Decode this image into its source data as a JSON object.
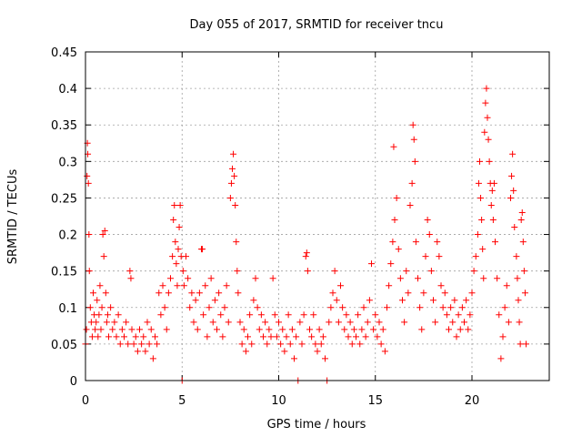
{
  "chart_data": {
    "type": "scatter",
    "title": "Day 055 of 2017, SRMTID for receiver tncu",
    "xlabel": "GPS time / hours",
    "ylabel": "SRMTID / TECUs",
    "xlim": [
      0,
      24
    ],
    "ylim": [
      0,
      0.45
    ],
    "xticks": [
      0,
      5,
      10,
      15,
      20
    ],
    "yticks": [
      0,
      0.05,
      0.1,
      0.15,
      0.2,
      0.25,
      0.3,
      0.35,
      0.4,
      0.45
    ],
    "xtick_labels": [
      "0",
      "5",
      "10",
      "15",
      "20"
    ],
    "ytick_labels": [
      "0",
      "0.05",
      "0.1",
      "0.15",
      "0.2",
      "0.25",
      "0.3",
      "0.35",
      "0.4",
      "0.45"
    ],
    "grid": true,
    "marker": "+",
    "color": "#ff0000",
    "series": [
      {
        "name": "SRMTID",
        "points": [
          [
            0.0,
            0.05
          ],
          [
            0.05,
            0.07
          ],
          [
            0.08,
            0.28
          ],
          [
            0.1,
            0.325
          ],
          [
            0.12,
            0.31
          ],
          [
            0.15,
            0.27
          ],
          [
            0.18,
            0.2
          ],
          [
            0.2,
            0.15
          ],
          [
            0.25,
            0.1
          ],
          [
            0.3,
            0.08
          ],
          [
            0.35,
            0.06
          ],
          [
            0.4,
            0.12
          ],
          [
            0.45,
            0.09
          ],
          [
            0.5,
            0.07
          ],
          [
            0.55,
            0.08
          ],
          [
            0.6,
            0.11
          ],
          [
            0.65,
            0.06
          ],
          [
            0.7,
            0.09
          ],
          [
            0.75,
            0.13
          ],
          [
            0.8,
            0.07
          ],
          [
            0.85,
            0.1
          ],
          [
            0.9,
            0.2
          ],
          [
            0.95,
            0.17
          ],
          [
            1.0,
            0.205
          ],
          [
            1.05,
            0.12
          ],
          [
            1.1,
            0.08
          ],
          [
            1.15,
            0.09
          ],
          [
            1.2,
            0.06
          ],
          [
            1.3,
            0.1
          ],
          [
            1.4,
            0.07
          ],
          [
            1.5,
            0.08
          ],
          [
            1.6,
            0.06
          ],
          [
            1.7,
            0.09
          ],
          [
            1.8,
            0.05
          ],
          [
            1.9,
            0.07
          ],
          [
            2.0,
            0.06
          ],
          [
            2.1,
            0.08
          ],
          [
            2.2,
            0.05
          ],
          [
            2.3,
            0.15
          ],
          [
            2.35,
            0.14
          ],
          [
            2.4,
            0.07
          ],
          [
            2.5,
            0.05
          ],
          [
            2.6,
            0.06
          ],
          [
            2.7,
            0.04
          ],
          [
            2.8,
            0.07
          ],
          [
            2.9,
            0.05
          ],
          [
            3.0,
            0.06
          ],
          [
            3.1,
            0.04
          ],
          [
            3.2,
            0.08
          ],
          [
            3.3,
            0.05
          ],
          [
            3.4,
            0.07
          ],
          [
            3.5,
            0.03
          ],
          [
            3.6,
            0.06
          ],
          [
            3.7,
            0.05
          ],
          [
            3.8,
            0.12
          ],
          [
            3.9,
            0.09
          ],
          [
            4.0,
            0.13
          ],
          [
            4.1,
            0.1
          ],
          [
            4.2,
            0.07
          ],
          [
            4.3,
            0.12
          ],
          [
            4.4,
            0.14
          ],
          [
            4.5,
            0.17
          ],
          [
            4.55,
            0.22
          ],
          [
            4.6,
            0.24
          ],
          [
            4.65,
            0.19
          ],
          [
            4.7,
            0.16
          ],
          [
            4.75,
            0.13
          ],
          [
            4.8,
            0.18
          ],
          [
            4.85,
            0.21
          ],
          [
            4.9,
            0.24
          ],
          [
            4.95,
            0.17
          ],
          [
            5.0,
            0.0
          ],
          [
            5.05,
            0.15
          ],
          [
            5.1,
            0.13
          ],
          [
            5.2,
            0.17
          ],
          [
            5.3,
            0.14
          ],
          [
            5.4,
            0.1
          ],
          [
            5.5,
            0.12
          ],
          [
            5.6,
            0.08
          ],
          [
            5.7,
            0.11
          ],
          [
            5.8,
            0.07
          ],
          [
            5.9,
            0.12
          ],
          [
            6.0,
            0.18
          ],
          [
            6.05,
            0.18
          ],
          [
            6.1,
            0.09
          ],
          [
            6.2,
            0.13
          ],
          [
            6.3,
            0.06
          ],
          [
            6.4,
            0.1
          ],
          [
            6.5,
            0.14
          ],
          [
            6.6,
            0.08
          ],
          [
            6.7,
            0.11
          ],
          [
            6.8,
            0.07
          ],
          [
            6.9,
            0.12
          ],
          [
            7.0,
            0.09
          ],
          [
            7.1,
            0.06
          ],
          [
            7.2,
            0.1
          ],
          [
            7.3,
            0.13
          ],
          [
            7.4,
            0.08
          ],
          [
            7.5,
            0.25
          ],
          [
            7.55,
            0.27
          ],
          [
            7.6,
            0.29
          ],
          [
            7.65,
            0.31
          ],
          [
            7.7,
            0.28
          ],
          [
            7.75,
            0.24
          ],
          [
            7.8,
            0.19
          ],
          [
            7.85,
            0.15
          ],
          [
            7.9,
            0.12
          ],
          [
            8.0,
            0.08
          ],
          [
            8.1,
            0.05
          ],
          [
            8.2,
            0.07
          ],
          [
            8.3,
            0.04
          ],
          [
            8.4,
            0.06
          ],
          [
            8.5,
            0.09
          ],
          [
            8.6,
            0.05
          ],
          [
            8.7,
            0.11
          ],
          [
            8.8,
            0.14
          ],
          [
            8.9,
            0.1
          ],
          [
            9.0,
            0.07
          ],
          [
            9.1,
            0.09
          ],
          [
            9.2,
            0.06
          ],
          [
            9.3,
            0.08
          ],
          [
            9.4,
            0.05
          ],
          [
            9.5,
            0.07
          ],
          [
            9.6,
            0.06
          ],
          [
            9.7,
            0.14
          ],
          [
            9.8,
            0.09
          ],
          [
            9.9,
            0.06
          ],
          [
            10.0,
            0.08
          ],
          [
            10.1,
            0.05
          ],
          [
            10.2,
            0.07
          ],
          [
            10.3,
            0.04
          ],
          [
            10.4,
            0.06
          ],
          [
            10.5,
            0.09
          ],
          [
            10.6,
            0.05
          ],
          [
            10.7,
            0.07
          ],
          [
            10.8,
            0.03
          ],
          [
            10.9,
            0.06
          ],
          [
            11.0,
            0.0
          ],
          [
            11.1,
            0.08
          ],
          [
            11.2,
            0.05
          ],
          [
            11.3,
            0.09
          ],
          [
            11.4,
            0.17
          ],
          [
            11.45,
            0.175
          ],
          [
            11.5,
            0.15
          ],
          [
            11.6,
            0.07
          ],
          [
            11.7,
            0.06
          ],
          [
            11.8,
            0.09
          ],
          [
            11.9,
            0.05
          ],
          [
            12.0,
            0.04
          ],
          [
            12.1,
            0.07
          ],
          [
            12.2,
            0.05
          ],
          [
            12.3,
            0.06
          ],
          [
            12.4,
            0.03
          ],
          [
            12.5,
            0.0
          ],
          [
            12.6,
            0.08
          ],
          [
            12.7,
            0.1
          ],
          [
            12.8,
            0.12
          ],
          [
            12.9,
            0.15
          ],
          [
            13.0,
            0.11
          ],
          [
            13.1,
            0.08
          ],
          [
            13.2,
            0.13
          ],
          [
            13.3,
            0.1
          ],
          [
            13.4,
            0.07
          ],
          [
            13.5,
            0.09
          ],
          [
            13.6,
            0.06
          ],
          [
            13.7,
            0.08
          ],
          [
            13.8,
            0.05
          ],
          [
            13.9,
            0.07
          ],
          [
            14.0,
            0.06
          ],
          [
            14.1,
            0.09
          ],
          [
            14.2,
            0.05
          ],
          [
            14.3,
            0.07
          ],
          [
            14.4,
            0.1
          ],
          [
            14.5,
            0.06
          ],
          [
            14.6,
            0.08
          ],
          [
            14.7,
            0.11
          ],
          [
            14.8,
            0.16
          ],
          [
            14.9,
            0.07
          ],
          [
            15.0,
            0.09
          ],
          [
            15.1,
            0.06
          ],
          [
            15.2,
            0.08
          ],
          [
            15.3,
            0.05
          ],
          [
            15.4,
            0.07
          ],
          [
            15.5,
            0.04
          ],
          [
            15.6,
            0.1
          ],
          [
            15.7,
            0.13
          ],
          [
            15.8,
            0.16
          ],
          [
            15.9,
            0.19
          ],
          [
            15.95,
            0.32
          ],
          [
            16.0,
            0.22
          ],
          [
            16.1,
            0.25
          ],
          [
            16.2,
            0.18
          ],
          [
            16.3,
            0.14
          ],
          [
            16.4,
            0.11
          ],
          [
            16.5,
            0.08
          ],
          [
            16.6,
            0.15
          ],
          [
            16.7,
            0.12
          ],
          [
            16.8,
            0.24
          ],
          [
            16.9,
            0.27
          ],
          [
            16.95,
            0.35
          ],
          [
            17.0,
            0.33
          ],
          [
            17.05,
            0.3
          ],
          [
            17.1,
            0.19
          ],
          [
            17.2,
            0.14
          ],
          [
            17.3,
            0.1
          ],
          [
            17.4,
            0.07
          ],
          [
            17.5,
            0.12
          ],
          [
            17.6,
            0.17
          ],
          [
            17.7,
            0.22
          ],
          [
            17.8,
            0.2
          ],
          [
            17.9,
            0.15
          ],
          [
            18.0,
            0.11
          ],
          [
            18.1,
            0.08
          ],
          [
            18.2,
            0.19
          ],
          [
            18.3,
            0.17
          ],
          [
            18.4,
            0.13
          ],
          [
            18.5,
            0.1
          ],
          [
            18.6,
            0.12
          ],
          [
            18.7,
            0.09
          ],
          [
            18.8,
            0.07
          ],
          [
            18.9,
            0.1
          ],
          [
            19.0,
            0.08
          ],
          [
            19.1,
            0.11
          ],
          [
            19.2,
            0.06
          ],
          [
            19.3,
            0.09
          ],
          [
            19.4,
            0.07
          ],
          [
            19.5,
            0.1
          ],
          [
            19.6,
            0.08
          ],
          [
            19.7,
            0.11
          ],
          [
            19.8,
            0.07
          ],
          [
            19.9,
            0.09
          ],
          [
            20.0,
            0.12
          ],
          [
            20.1,
            0.15
          ],
          [
            20.2,
            0.17
          ],
          [
            20.3,
            0.2
          ],
          [
            20.35,
            0.27
          ],
          [
            20.4,
            0.3
          ],
          [
            20.45,
            0.25
          ],
          [
            20.5,
            0.22
          ],
          [
            20.55,
            0.18
          ],
          [
            20.6,
            0.14
          ],
          [
            20.65,
            0.34
          ],
          [
            20.7,
            0.38
          ],
          [
            20.75,
            0.4
          ],
          [
            20.8,
            0.36
          ],
          [
            20.85,
            0.33
          ],
          [
            20.9,
            0.3
          ],
          [
            20.95,
            0.27
          ],
          [
            21.0,
            0.24
          ],
          [
            21.05,
            0.26
          ],
          [
            21.1,
            0.22
          ],
          [
            21.15,
            0.27
          ],
          [
            21.2,
            0.19
          ],
          [
            21.3,
            0.14
          ],
          [
            21.4,
            0.09
          ],
          [
            21.5,
            0.03
          ],
          [
            21.6,
            0.06
          ],
          [
            21.7,
            0.1
          ],
          [
            21.8,
            0.13
          ],
          [
            21.9,
            0.08
          ],
          [
            22.0,
            0.25
          ],
          [
            22.05,
            0.28
          ],
          [
            22.1,
            0.31
          ],
          [
            22.15,
            0.26
          ],
          [
            22.2,
            0.21
          ],
          [
            22.3,
            0.17
          ],
          [
            22.35,
            0.14
          ],
          [
            22.4,
            0.11
          ],
          [
            22.45,
            0.08
          ],
          [
            22.5,
            0.05
          ],
          [
            22.55,
            0.22
          ],
          [
            22.6,
            0.23
          ],
          [
            22.65,
            0.19
          ],
          [
            22.7,
            0.15
          ],
          [
            22.75,
            0.12
          ],
          [
            22.8,
            0.05
          ]
        ]
      }
    ]
  }
}
